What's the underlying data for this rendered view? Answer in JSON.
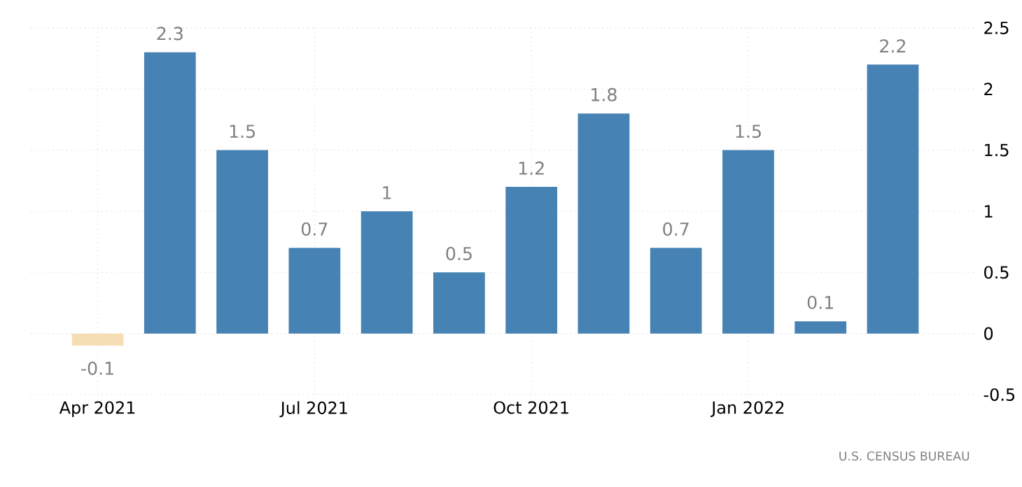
{
  "chart_data": {
    "type": "bar",
    "categories": [
      "Apr 2021",
      null,
      null,
      "Jul 2021",
      null,
      null,
      "Oct 2021",
      null,
      null,
      "Jan 2022",
      null,
      null
    ],
    "values": [
      -0.1,
      2.3,
      1.5,
      0.7,
      1,
      0.5,
      1.2,
      1.8,
      0.7,
      1.5,
      0.1,
      2.2
    ],
    "colors": [
      "#f5deb3",
      "#4682b4",
      "#4682b4",
      "#4682b4",
      "#4682b4",
      "#4682b4",
      "#4682b4",
      "#4682b4",
      "#4682b4",
      "#4682b4",
      "#4682b4",
      "#4682b4"
    ],
    "ylim": [
      -0.5,
      2.5
    ],
    "yticks": [
      -0.5,
      0,
      0.5,
      1,
      1.5,
      2,
      2.5
    ],
    "grid": true,
    "data_labels": true,
    "annotations": [
      "U.S. CENSUS BUREAU"
    ]
  }
}
